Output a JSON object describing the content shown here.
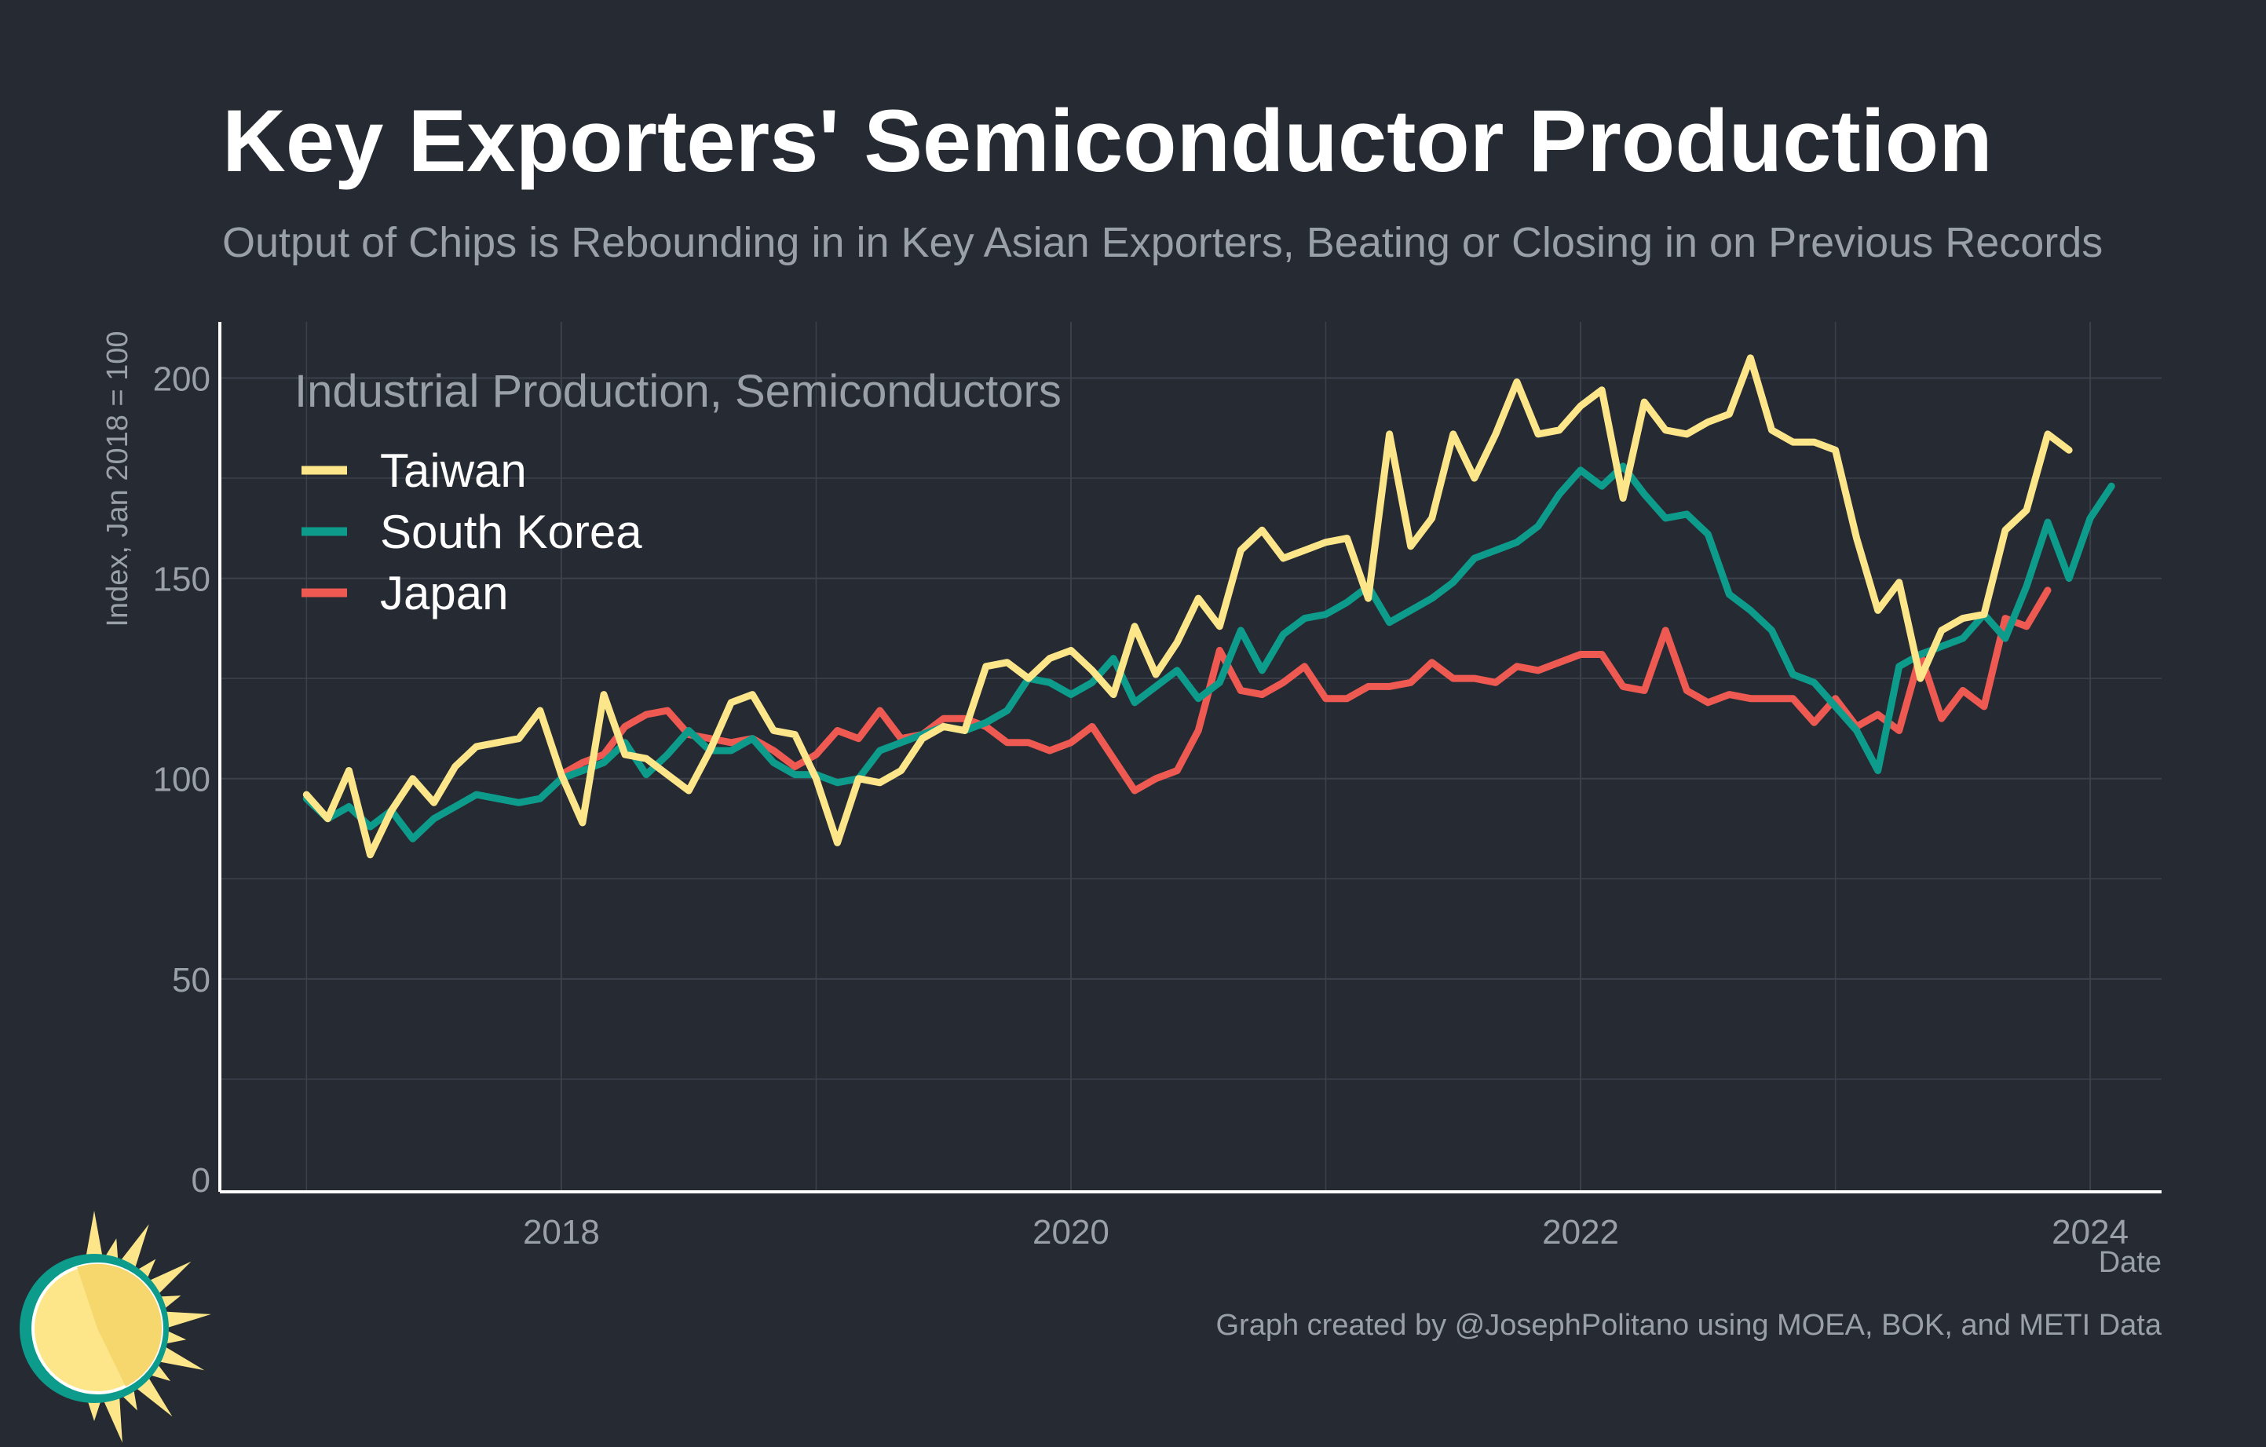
{
  "chart_data": {
    "type": "line",
    "title": "Key Exporters' Semiconductor Production",
    "subtitle": "Output of Chips is Rebounding in in Key Asian Exporters, Beating or Closing in on Previous Records",
    "xlabel": "Date",
    "ylabel": "Index, Jan 2018 = 100",
    "legend_title": "Industrial Production, Semiconductors",
    "legend_position": "top-left",
    "caption": "Graph created by @JosephPolitano using MOEA, BOK, and METI Data",
    "grid": true,
    "xlim": [
      2016.66,
      2024.28
    ],
    "ylim": [
      0,
      200
    ],
    "x_ticks": [
      2018,
      2020,
      2022,
      2024
    ],
    "x_tick_labels": [
      "2018",
      "2020",
      "2022",
      "2024"
    ],
    "y_ticks": [
      0,
      50,
      100,
      150,
      200
    ],
    "y_tick_labels": [
      "0",
      "50",
      "100",
      "150",
      "200"
    ],
    "x_start": 2017.0,
    "x_step": 0.0833333,
    "series": [
      {
        "name": "Taiwan",
        "color": "#fde68a",
        "values": [
          96,
          90,
          102,
          81,
          92,
          100,
          94,
          103,
          108,
          109,
          110,
          117,
          101,
          89,
          121,
          106,
          105,
          101,
          97,
          107,
          119,
          121,
          112,
          111,
          100,
          84,
          100,
          99,
          102,
          110,
          113,
          112,
          128,
          129,
          125,
          130,
          132,
          127,
          121,
          138,
          126,
          134,
          145,
          138,
          157,
          162,
          155,
          157,
          159,
          160,
          145,
          186,
          158,
          165,
          186,
          175,
          186,
          199,
          186,
          187,
          193,
          197,
          170,
          194,
          187,
          186,
          189,
          191,
          205,
          187,
          184,
          184,
          182,
          160,
          142,
          149,
          125,
          137,
          140,
          141,
          162,
          167,
          186,
          182
        ]
      },
      {
        "name": "South Korea",
        "color": "#0d9c8c",
        "values": [
          95,
          90,
          93,
          88,
          92,
          85,
          90,
          93,
          96,
          95,
          94,
          95,
          100,
          102,
          104,
          109,
          101,
          106,
          112,
          107,
          107,
          110,
          104,
          101,
          101,
          99,
          100,
          107,
          109,
          111,
          113,
          112,
          114,
          117,
          125,
          124,
          121,
          124,
          130,
          119,
          123,
          127,
          120,
          124,
          137,
          127,
          136,
          140,
          141,
          144,
          148,
          139,
          142,
          145,
          149,
          155,
          157,
          159,
          163,
          171,
          177,
          173,
          178,
          171,
          165,
          166,
          161,
          146,
          142,
          137,
          126,
          124,
          118,
          112,
          102,
          128,
          131,
          133,
          135,
          141,
          135,
          148,
          164,
          150,
          165,
          173
        ]
      },
      {
        "name": "Japan",
        "color": "#ee5a52",
        "values": [
          101,
          104,
          106,
          113,
          116,
          117,
          111,
          110,
          109,
          110,
          107,
          103,
          106,
          112,
          110,
          117,
          110,
          111,
          115,
          115,
          113,
          109,
          109,
          107,
          109,
          113,
          105,
          97,
          100,
          102,
          112,
          132,
          122,
          121,
          124,
          128,
          120,
          120,
          123,
          123,
          124,
          129,
          125,
          125,
          124,
          128,
          127,
          129,
          131,
          131,
          123,
          122,
          137,
          122,
          119,
          121,
          120,
          120,
          120,
          114,
          120,
          113,
          116,
          112,
          131,
          115,
          122,
          118,
          140,
          138,
          147
        ]
      }
    ],
    "japan_x_start": 2018.0
  },
  "logo": {
    "icon": "sun-icon",
    "colors": [
      "#fde68a",
      "#f5d76e",
      "#0d9c8c"
    ]
  },
  "colors": {
    "background": "#252a33",
    "grid": "#3c414b",
    "axis": "#ffffff",
    "text_muted": "#9aa0a8"
  }
}
